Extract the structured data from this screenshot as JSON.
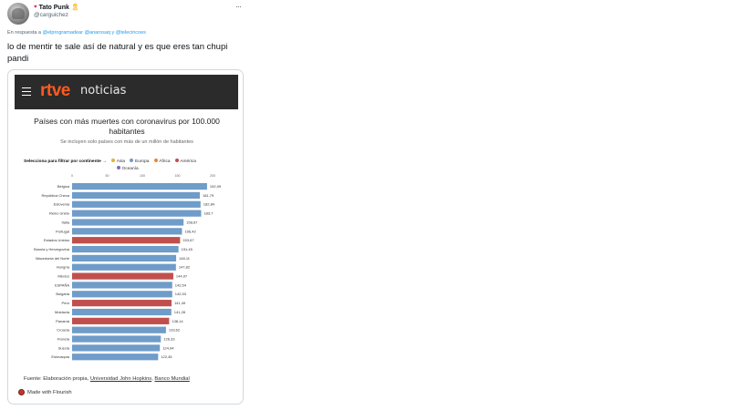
{
  "tweet": {
    "author_name": "Tato Punk",
    "handle": "@carguichez",
    "reply_prefix": "En respuesta a",
    "reply_mentions": "@elprogramadear @anarosaq y @telecincoes",
    "text": "lo de mentir te sale  así de natural y es que eres tan chupi pandi",
    "more_icon": "more-dots-icon",
    "heart_icon": "heart-icon",
    "ribbon_icon": "ribbon-icon"
  },
  "card": {
    "brand_logo": "rtve",
    "brand_section": "noticias",
    "chart_title": "Países con más muertes con coronavirus por 100.000 habitantes",
    "chart_subtitle": "Se incluyen solo países con más de un millón de habitantes",
    "filter": {
      "label": "Selecciona para filtrar por continente →",
      "options": [
        {
          "label": "Asia",
          "color": "#e0b43c"
        },
        {
          "label": "Europa",
          "color": "#6f9cc9"
        },
        {
          "label": "África",
          "color": "#e08a3c"
        },
        {
          "label": "América",
          "color": "#c0504d"
        },
        {
          "label": "Oceanía",
          "color": "#7a6fb5"
        }
      ]
    },
    "source_prefix": "Fuente: Elaboración propia,",
    "source_link1": "Universidad John Hopkins",
    "source_link2": "Banco Mundial",
    "flourish_label": "Made with Flourish"
  },
  "chart_data": {
    "type": "bar",
    "orientation": "horizontal",
    "title": "Países con más muertes con coronavirus por 100.000 habitantes",
    "subtitle": "Se incluyen solo países con más de un millón de habitantes",
    "xlim": [
      0,
      200
    ],
    "ticks": [
      0,
      50,
      100,
      150,
      200
    ],
    "categories": [
      "Bélgica",
      "República Checa",
      "Eslovenia",
      "Reino Unido",
      "Italia",
      "Portugal",
      "Estados Unidos",
      "Bosnia y Herzegovina",
      "Macedonia del Norte",
      "Hungría",
      "México",
      "ESPAÑA",
      "Bulgaria",
      "Perú",
      "Moldavia",
      "Panamá",
      "Croacia",
      "Francia",
      "Suecia",
      "Eslovaquia"
    ],
    "values": [
      192.09,
      181.79,
      182.84,
      183.7,
      158.67,
      156.42,
      153.67,
      151.45,
      148.11,
      147.82,
      144.07,
      142.54,
      142.53,
      141.49,
      141.28,
      138.14,
      133.62,
      126.33,
      124.94,
      122.45
    ],
    "value_labels": [
      "192,09",
      "181,79",
      "182,84",
      "183,7",
      "158,67",
      "156,42",
      "153,67",
      "151,45",
      "148,11",
      "147,82",
      "144,07",
      "142,54",
      "142,53",
      "141,49",
      "141,28",
      "138,14",
      "133,62",
      "126,33",
      "124,94",
      "122,45"
    ],
    "continents": [
      "Europa",
      "Europa",
      "Europa",
      "Europa",
      "Europa",
      "Europa",
      "América",
      "Europa",
      "Europa",
      "Europa",
      "América",
      "Europa",
      "Europa",
      "América",
      "Europa",
      "América",
      "Europa",
      "Europa",
      "Europa",
      "Europa"
    ],
    "colors": {
      "Europa": "#6f9cc9",
      "América": "#c0504d"
    },
    "legend": "top"
  }
}
